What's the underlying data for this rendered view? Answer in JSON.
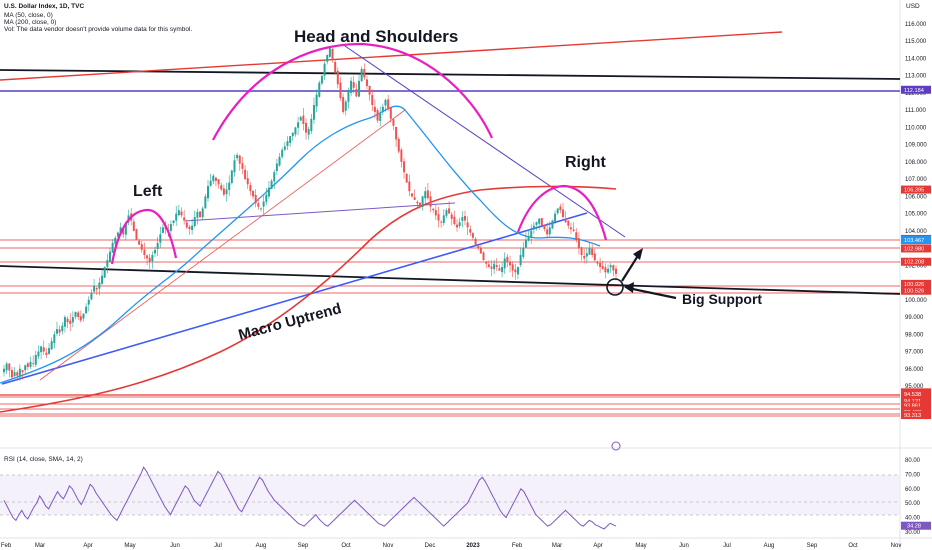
{
  "header": {
    "title": "U.S. Dollar Index, 1D, TVC",
    "ma50": "MA (50, close, 0)",
    "ma200": "MA (200, close, 0)",
    "vol": "Vol: The data vendor doesn't provide volume data for this symbol."
  },
  "currency": "USD",
  "rsi_header": "RSI (14, close, SMA, 14, 2)",
  "annotations": {
    "head_shoulders": "Head and Shoulders",
    "left": "Left",
    "right": "Right",
    "macro_uptrend": "Macro Uptrend",
    "big_support": "Big Support"
  },
  "colors": {
    "candle_up": "#26a69a",
    "candle_down": "#ef5350",
    "ma50": "#2196f3",
    "ma200": "#e53935",
    "arc": "#e91ec2",
    "resistance": "#e53935",
    "trend_blue": "#3d5afe",
    "trend_purple": "#5c3dc4",
    "rsi": "#7e57c2"
  },
  "chart_data": [
    {
      "type": "line",
      "series": [
        {
          "values": [
            96.0,
            96.3,
            95.9,
            95.5,
            95.8,
            95.6,
            96.0,
            95.8,
            96.2,
            96.1,
            96.4,
            96.3,
            96.8,
            97.0,
            97.3,
            97.0,
            96.8,
            97.2,
            97.6,
            98.0,
            98.3,
            98.1,
            98.5,
            99.0,
            98.7,
            98.6,
            99.0,
            99.3,
            99.0,
            98.8,
            99.2,
            99.6,
            100.0,
            100.4,
            100.8,
            100.6,
            101.0,
            101.4,
            101.9,
            102.3,
            102.8,
            103.3,
            103.6,
            103.9,
            104.2,
            103.8,
            104.5,
            104.9,
            104.6,
            104.0,
            103.5,
            103.2,
            102.9,
            102.6,
            102.4,
            102.2,
            102.6,
            102.9,
            103.3,
            103.8,
            104.2,
            104.1,
            104.0,
            104.4,
            104.6,
            105.0,
            105.2,
            104.9,
            104.6,
            104.2,
            104.1,
            104.3,
            104.8,
            105.1,
            104.8,
            105.3,
            106.0,
            106.6,
            106.9,
            107.2,
            106.9,
            106.7,
            106.4,
            106.1,
            106.4,
            106.8,
            107.5,
            108.1,
            108.4,
            107.9,
            107.6,
            107.0,
            106.7,
            106.3,
            106.0,
            105.6,
            105.4,
            105.3,
            105.7,
            106.1,
            106.5,
            106.9,
            107.4,
            107.9,
            108.3,
            108.7,
            108.9,
            109.2,
            109.5,
            109.7,
            110.0,
            110.3,
            110.6,
            110.2,
            109.7,
            109.9,
            110.5,
            111.3,
            111.9,
            112.6,
            113.0,
            113.7,
            114.2,
            114.6,
            113.9,
            113.2,
            112.5,
            111.7,
            110.9,
            111.5,
            112.1,
            112.7,
            112.3,
            111.8,
            112.7,
            113.4,
            112.9,
            112.4,
            111.9,
            111.3,
            110.9,
            110.4,
            110.8,
            111.2,
            111.6,
            111.1,
            110.5,
            110.1,
            109.3,
            108.6,
            108.0,
            107.4,
            106.8,
            106.3,
            106.0,
            105.8,
            105.6,
            105.4,
            106.0,
            106.3,
            105.9,
            105.4,
            105.2,
            104.9,
            104.6,
            104.5,
            104.9,
            105.2,
            105.0,
            104.7,
            104.4,
            104.2,
            104.5,
            104.8,
            104.6,
            104.2,
            103.9,
            103.6,
            103.2,
            103.0,
            102.7,
            102.3,
            102.1,
            101.9,
            101.8,
            102.1,
            101.9,
            101.7,
            101.9,
            102.4,
            102.2,
            102.0,
            101.7,
            101.6,
            101.9,
            102.6,
            103.0,
            103.5,
            103.7,
            104.0,
            104.3,
            104.5,
            104.7,
            104.3,
            104.1,
            103.8,
            104.2,
            104.6,
            105.0,
            105.3,
            105.2,
            104.8,
            104.5,
            104.3,
            104.1,
            104.0,
            103.5,
            103.0,
            102.6,
            102.4,
            102.7,
            103.0,
            102.6,
            102.3,
            102.1,
            101.9,
            101.8,
            101.6,
            101.8,
            102.0,
            101.7,
            101.5
          ],
          "note_units": "price"
        }
      ],
      "x_ticks": [
        "Feb",
        "Mar",
        "Apr",
        "May",
        "Jun",
        "Jul",
        "Aug",
        "Sep",
        "Oct",
        "Nov",
        "Dec",
        "2023",
        "Feb",
        "Mar",
        "Apr",
        "May",
        "Jun",
        "Jul",
        "Aug",
        "Sep",
        "Oct",
        "Nov"
      ],
      "y_ticks": [
        "116.000",
        "115.000",
        "114.000",
        "113.000",
        "112.000",
        "111.000",
        "110.000",
        "109.000",
        "108.000",
        "107.000",
        "106.000",
        "105.000",
        "104.000",
        "103.000",
        "102.000",
        "101.000",
        "100.000",
        "99.000",
        "98.000",
        "97.000",
        "96.000",
        "95.000"
      ],
      "price_labels": [
        {
          "text": "112.184",
          "color": "#5c3dc4"
        },
        {
          "text": "106.395",
          "color": "#e53935"
        },
        {
          "text": "103.531",
          "color": "#e53935"
        },
        {
          "text": "103.467",
          "color": "#2196f3"
        },
        {
          "text": "102.980",
          "color": "#e53935"
        },
        {
          "text": "102.208",
          "color": "#e53935"
        },
        {
          "text": "100.926",
          "color": "#e53935"
        },
        {
          "text": "100.526",
          "color": "#e53935"
        },
        {
          "text": "94.632",
          "color": "#e53935"
        },
        {
          "text": "94.538",
          "color": "#e53935"
        },
        {
          "text": "94.121",
          "color": "#e53935"
        },
        {
          "text": "93.861",
          "color": "#e53935"
        },
        {
          "text": "93.574",
          "color": "#e53935"
        },
        {
          "text": "93.483",
          "color": "#e53935"
        },
        {
          "text": "93.313",
          "color": "#e53935"
        }
      ],
      "ylim": [
        93.0,
        116.6
      ]
    },
    {
      "type": "line",
      "title": "RSI (14, close, SMA, 14, 2)",
      "y_ticks": [
        "80.00",
        "70.00",
        "60.00",
        "50.00",
        "40.00",
        "30.00"
      ],
      "last_value_label": "34.28",
      "ylim": [
        28,
        82
      ],
      "series": [
        {
          "values": [
            52,
            48,
            44,
            40,
            38,
            42,
            45,
            41,
            39,
            43,
            47,
            50,
            55,
            52,
            48,
            46,
            50,
            54,
            58,
            55,
            53,
            57,
            62,
            60,
            56,
            52,
            49,
            53,
            58,
            63,
            61,
            57,
            54,
            51,
            48,
            45,
            42,
            40,
            38,
            42,
            46,
            50,
            54,
            58,
            62,
            66,
            70,
            75,
            72,
            68,
            64,
            60,
            56,
            52,
            48,
            45,
            42,
            46,
            50,
            54,
            58,
            62,
            60,
            56,
            52,
            50,
            48,
            52,
            56,
            60,
            64,
            68,
            72,
            70,
            66,
            62,
            58,
            54,
            50,
            46,
            44,
            48,
            52,
            56,
            60,
            64,
            68,
            66,
            62,
            58,
            55,
            52,
            50,
            48,
            46,
            44,
            42,
            40,
            38,
            36,
            35,
            34,
            36,
            38,
            40,
            42,
            39,
            37,
            35,
            34,
            36,
            38,
            40,
            42,
            44,
            46,
            48,
            50,
            52,
            50,
            48,
            46,
            44,
            42,
            40,
            38,
            36,
            35,
            34,
            36,
            38,
            40,
            42,
            44,
            46,
            48,
            50,
            52,
            54,
            52,
            50,
            48,
            46,
            44,
            42,
            40,
            38,
            36,
            34,
            36,
            38,
            40,
            42,
            44,
            46,
            48,
            50,
            54,
            58,
            62,
            66,
            68,
            65,
            61,
            57,
            53,
            49,
            45,
            42,
            40,
            44,
            48,
            52,
            56,
            60,
            58,
            54,
            50,
            46,
            42,
            40,
            38,
            36,
            34,
            35,
            37,
            39,
            41,
            43,
            45,
            43,
            41,
            39,
            37,
            35,
            34,
            36,
            38,
            37,
            35,
            34,
            33,
            32,
            34,
            36,
            35,
            34
          ]
        }
      ]
    }
  ]
}
